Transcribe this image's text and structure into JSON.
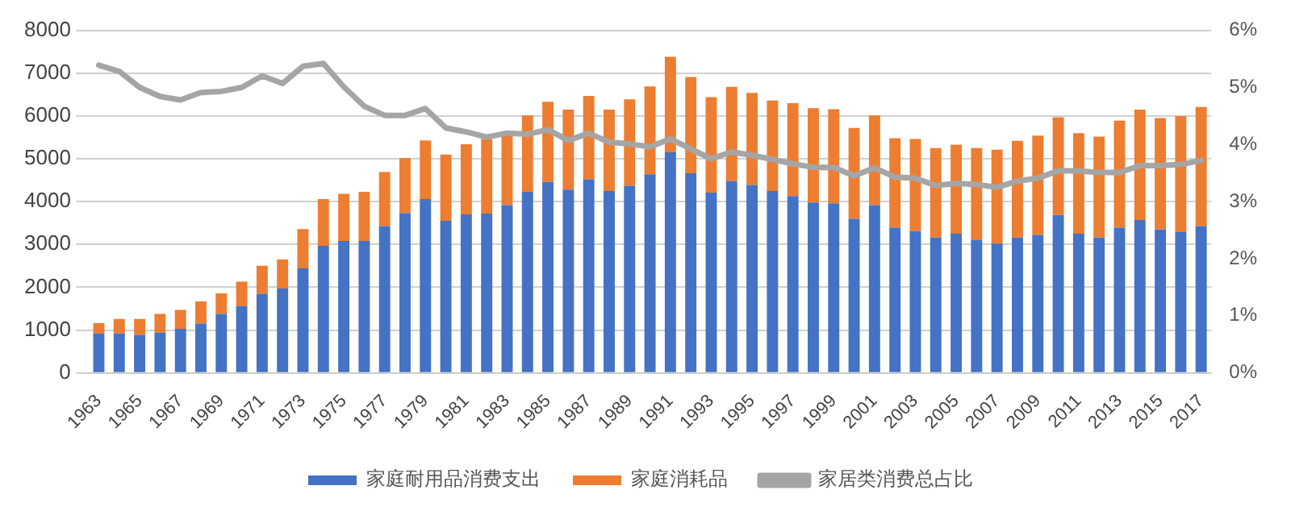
{
  "chart_data": {
    "type": "bar",
    "stacked": true,
    "categories": [
      "1963",
      null,
      "1965",
      null,
      "1967",
      null,
      "1969",
      null,
      "1971",
      null,
      "1973",
      null,
      "1975",
      null,
      "1977",
      null,
      "1979",
      null,
      "1981",
      null,
      "1983",
      null,
      "1985",
      null,
      "1987",
      null,
      "1989",
      null,
      "1991",
      null,
      "1993",
      null,
      "1995",
      null,
      "1997",
      null,
      "1999",
      null,
      "2001",
      null,
      "2003",
      null,
      "2005",
      null,
      "2007",
      null,
      "2009",
      null,
      "2011",
      null,
      "2013",
      null,
      "2015",
      null,
      "2017"
    ],
    "series": [
      {
        "name": "家庭耐用品消费支出",
        "color": "#4472c4",
        "values": [
          920,
          920,
          890,
          940,
          1030,
          1150,
          1380,
          1560,
          1850,
          1970,
          2440,
          2970,
          3080,
          3080,
          3430,
          3730,
          4060,
          3550,
          3700,
          3720,
          3920,
          4230,
          4460,
          4280,
          4520,
          4250,
          4370,
          4640,
          5150,
          4660,
          4210,
          4480,
          4390,
          4250,
          4130,
          3980,
          3960,
          3600,
          3920,
          3390,
          3310,
          3160,
          3250,
          3110,
          3020,
          3160,
          3220,
          3690,
          3250,
          3160,
          3390,
          3570,
          3350,
          3290,
          3430
        ]
      },
      {
        "name": "家庭消耗品",
        "color": "#ed7d31",
        "values": [
          240,
          340,
          370,
          440,
          440,
          520,
          480,
          570,
          650,
          680,
          920,
          1090,
          1100,
          1150,
          1260,
          1290,
          1370,
          1550,
          1640,
          1740,
          1680,
          1780,
          1870,
          1870,
          1950,
          1900,
          2020,
          2050,
          2230,
          2250,
          2230,
          2200,
          2150,
          2110,
          2170,
          2200,
          2200,
          2120,
          2090,
          2090,
          2150,
          2090,
          2080,
          2140,
          2190,
          2260,
          2320,
          2280,
          2350,
          2360,
          2500,
          2580,
          2600,
          2710,
          2780
        ]
      },
      {
        "name": "家居类消费总占比",
        "type": "line",
        "axis": "y2",
        "color": "#a5a5a5",
        "values": [
          5.39,
          5.28,
          5.0,
          4.84,
          4.78,
          4.91,
          4.93,
          5.0,
          5.2,
          5.07,
          5.37,
          5.42,
          5.01,
          4.67,
          4.51,
          4.51,
          4.63,
          4.29,
          4.22,
          4.13,
          4.2,
          4.18,
          4.26,
          4.07,
          4.2,
          4.04,
          4.01,
          3.96,
          4.1,
          3.92,
          3.75,
          3.87,
          3.81,
          3.74,
          3.66,
          3.6,
          3.6,
          3.45,
          3.59,
          3.43,
          3.41,
          3.28,
          3.32,
          3.3,
          3.25,
          3.36,
          3.41,
          3.54,
          3.54,
          3.51,
          3.51,
          3.63,
          3.63,
          3.65,
          3.72
        ]
      }
    ],
    "ylim": [
      0,
      8000
    ],
    "yticks": [
      0,
      1000,
      2000,
      3000,
      4000,
      5000,
      6000,
      7000,
      8000
    ],
    "y2lim": [
      0,
      6
    ],
    "y2ticks": [
      {
        "value": 0,
        "label": "0%"
      },
      {
        "value": 1,
        "label": "1%"
      },
      {
        "value": 2,
        "label": "2%"
      },
      {
        "value": 3,
        "label": "3%"
      },
      {
        "value": 4,
        "label": "4%"
      },
      {
        "value": 5,
        "label": "5%"
      },
      {
        "value": 6,
        "label": "6%"
      }
    ],
    "grid": "y",
    "legend": "bottom",
    "marker": "none"
  }
}
